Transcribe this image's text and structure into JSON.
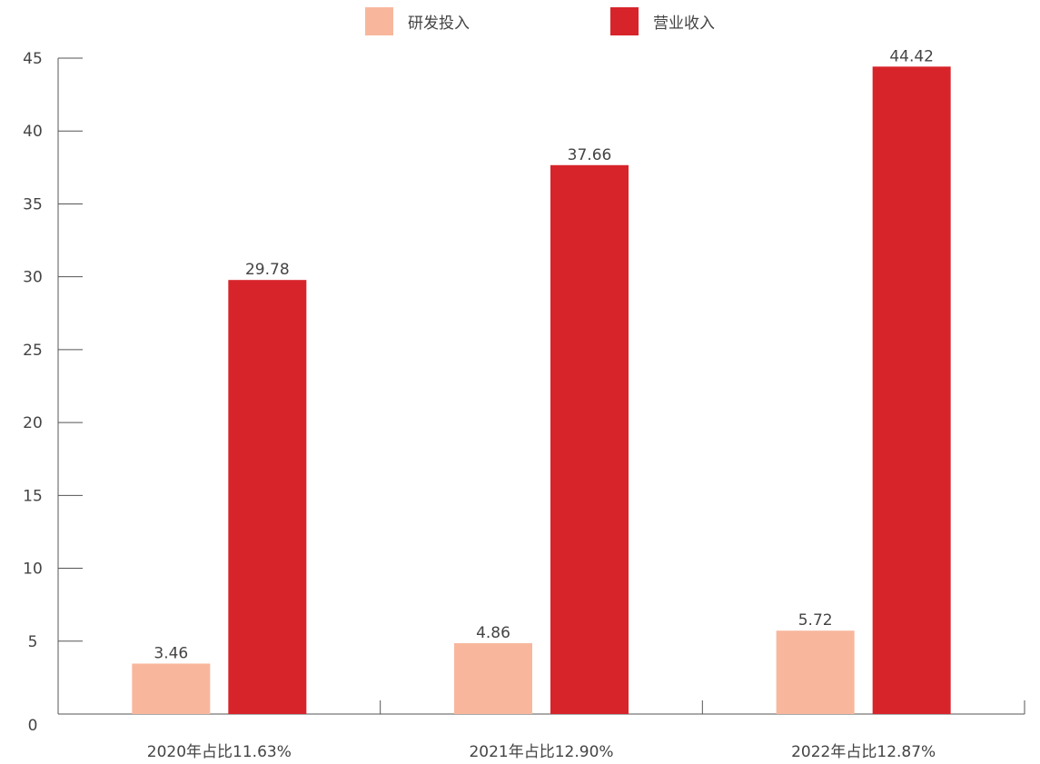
{
  "chart_data": {
    "type": "bar",
    "categories": [
      "2020年占比11.63%",
      "2021年占比12.90%",
      "2022年占比12.87%"
    ],
    "series": [
      {
        "name": "研发投入",
        "values": [
          3.46,
          4.86,
          5.72
        ],
        "color": "#f8b79d"
      },
      {
        "name": "营业收入",
        "values": [
          29.78,
          37.66,
          44.42
        ],
        "color": "#d7242a"
      }
    ],
    "data_labels": [
      [
        "3.46",
        "4.86",
        "5.72"
      ],
      [
        "29.78",
        "37.66",
        "44.42"
      ]
    ],
    "ylim": [
      0,
      45
    ],
    "y_ticks": [
      0,
      5,
      10,
      15,
      20,
      25,
      30,
      35,
      40,
      45
    ],
    "y_tick_labels": [
      "0",
      "5",
      "10",
      "15",
      "20",
      "25",
      "30",
      "35",
      "40",
      "45"
    ],
    "legend_position": "top-center",
    "grid": false
  }
}
